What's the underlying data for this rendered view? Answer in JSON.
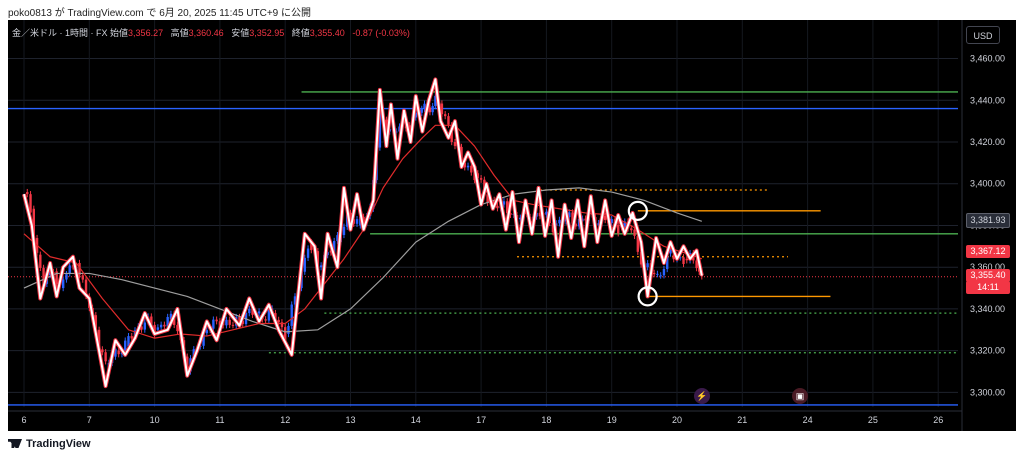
{
  "header": {
    "caption": "poko0813 が TradingView.com で 6月 20, 2025 11:45 UTC+9 に公開"
  },
  "legend": {
    "symbol": "金／米ドル · 1時間 · FX",
    "open_label": "始値",
    "open": "3,356.27",
    "high_label": "高値",
    "high": "3,360.46",
    "low_label": "安値",
    "low": "3,352.95",
    "close_label": "終値",
    "close": "3,355.40",
    "change": "-0.87 (-0.03%)"
  },
  "currency_button": "USD",
  "price_tags": {
    "ma_value": "3,381.93",
    "upper_red": "3,367.12",
    "last_price": "3,355.40",
    "countdown": "14:11"
  },
  "footer": {
    "logo_text": "TradingView"
  },
  "colors": {
    "background": "#000000",
    "up": "#2962ff",
    "down": "#f23645",
    "line_overlay": "#ffffff",
    "ma_fast": "#e02b2b",
    "ma_slow": "#9e9e9e",
    "blue_level": "#2962ff",
    "green_level": "#4caf50",
    "orange_level": "#ff9800"
  },
  "chart_data": {
    "type": "line",
    "instrument": "金／米ドル · 1時間 · FX",
    "x_ticks": [
      "6",
      "7",
      "10",
      "11",
      "12",
      "13",
      "14",
      "17",
      "18",
      "19",
      "20",
      "21",
      "24",
      "25",
      "26"
    ],
    "y_ticks": [
      "3,460.00",
      "3,440.00",
      "3,420.00",
      "3,400.00",
      "3,380.00",
      "3,360.00",
      "3,340.00",
      "3,320.00",
      "3,300.00"
    ],
    "ylim": [
      3293,
      3466
    ],
    "grid": true,
    "price_path_day_index": [
      [
        0.0,
        3395
      ],
      [
        0.12,
        3380
      ],
      [
        0.25,
        3345
      ],
      [
        0.4,
        3362
      ],
      [
        0.5,
        3346
      ],
      [
        0.6,
        3360
      ],
      [
        0.75,
        3365
      ],
      [
        0.85,
        3350
      ],
      [
        1.0,
        3345
      ],
      [
        1.15,
        3320
      ],
      [
        1.25,
        3303
      ],
      [
        1.4,
        3325
      ],
      [
        1.55,
        3318
      ],
      [
        1.7,
        3326
      ],
      [
        1.85,
        3338
      ],
      [
        2.0,
        3328
      ],
      [
        2.2,
        3330
      ],
      [
        2.35,
        3340
      ],
      [
        2.5,
        3308
      ],
      [
        2.65,
        3320
      ],
      [
        2.8,
        3334
      ],
      [
        2.95,
        3325
      ],
      [
        3.1,
        3340
      ],
      [
        3.3,
        3332
      ],
      [
        3.45,
        3345
      ],
      [
        3.6,
        3334
      ],
      [
        3.75,
        3342
      ],
      [
        3.9,
        3330
      ],
      [
        4.1,
        3318
      ],
      [
        4.3,
        3376
      ],
      [
        4.45,
        3370
      ],
      [
        4.55,
        3345
      ],
      [
        4.65,
        3376
      ],
      [
        4.8,
        3360
      ],
      [
        4.9,
        3398
      ],
      [
        5.0,
        3378
      ],
      [
        5.1,
        3395
      ],
      [
        5.2,
        3378
      ],
      [
        5.35,
        3392
      ],
      [
        5.45,
        3445
      ],
      [
        5.55,
        3418
      ],
      [
        5.62,
        3438
      ],
      [
        5.72,
        3412
      ],
      [
        5.82,
        3435
      ],
      [
        5.92,
        3420
      ],
      [
        6.0,
        3442
      ],
      [
        6.1,
        3425
      ],
      [
        6.2,
        3440
      ],
      [
        6.3,
        3450
      ],
      [
        6.38,
        3430
      ],
      [
        6.5,
        3422
      ],
      [
        6.6,
        3430
      ],
      [
        6.7,
        3408
      ],
      [
        6.8,
        3415
      ],
      [
        6.9,
        3408
      ],
      [
        7.0,
        3390
      ],
      [
        7.08,
        3400
      ],
      [
        7.18,
        3388
      ],
      [
        7.28,
        3395
      ],
      [
        7.38,
        3378
      ],
      [
        7.48,
        3396
      ],
      [
        7.58,
        3372
      ],
      [
        7.68,
        3392
      ],
      [
        7.78,
        3376
      ],
      [
        7.88,
        3398
      ],
      [
        7.98,
        3375
      ],
      [
        8.08,
        3392
      ],
      [
        8.18,
        3365
      ],
      [
        8.28,
        3390
      ],
      [
        8.38,
        3374
      ],
      [
        8.48,
        3392
      ],
      [
        8.58,
        3370
      ],
      [
        8.68,
        3394
      ],
      [
        8.78,
        3372
      ],
      [
        8.9,
        3392
      ],
      [
        9.0,
        3375
      ],
      [
        9.1,
        3385
      ],
      [
        9.2,
        3376
      ],
      [
        9.32,
        3386
      ],
      [
        9.45,
        3372
      ],
      [
        9.55,
        3346
      ],
      [
        9.68,
        3374
      ],
      [
        9.8,
        3362
      ],
      [
        9.9,
        3372
      ],
      [
        10.0,
        3364
      ],
      [
        10.1,
        3370
      ],
      [
        10.2,
        3364
      ],
      [
        10.3,
        3368
      ],
      [
        10.38,
        3356
      ]
    ],
    "candle_path_day_index": [
      [
        0.0,
        3396
      ],
      [
        0.1,
        3388
      ],
      [
        0.2,
        3366
      ],
      [
        0.3,
        3352
      ],
      [
        0.45,
        3358
      ],
      [
        0.55,
        3350
      ],
      [
        0.65,
        3357
      ],
      [
        0.8,
        3362
      ],
      [
        0.95,
        3346
      ],
      [
        1.1,
        3330
      ],
      [
        1.25,
        3312
      ],
      [
        1.4,
        3320
      ],
      [
        1.55,
        3322
      ],
      [
        1.7,
        3330
      ],
      [
        1.85,
        3334
      ],
      [
        2.0,
        3330
      ],
      [
        2.2,
        3335
      ],
      [
        2.35,
        3332
      ],
      [
        2.5,
        3310
      ],
      [
        2.65,
        3322
      ],
      [
        2.8,
        3330
      ],
      [
        3.0,
        3334
      ],
      [
        3.2,
        3332
      ],
      [
        3.4,
        3338
      ],
      [
        3.6,
        3337
      ],
      [
        3.8,
        3338
      ],
      [
        4.0,
        3328
      ],
      [
        4.2,
        3350
      ],
      [
        4.35,
        3372
      ],
      [
        4.5,
        3360
      ],
      [
        4.65,
        3368
      ],
      [
        4.8,
        3372
      ],
      [
        4.95,
        3386
      ],
      [
        5.1,
        3380
      ],
      [
        5.3,
        3388
      ],
      [
        5.45,
        3432
      ],
      [
        5.65,
        3425
      ],
      [
        5.85,
        3428
      ],
      [
        6.05,
        3434
      ],
      [
        6.3,
        3440
      ],
      [
        6.5,
        3428
      ],
      [
        6.7,
        3410
      ],
      [
        6.9,
        3405
      ],
      [
        7.1,
        3392
      ],
      [
        7.3,
        3390
      ],
      [
        7.5,
        3385
      ],
      [
        7.7,
        3384
      ],
      [
        7.9,
        3386
      ],
      [
        8.1,
        3380
      ],
      [
        8.3,
        3384
      ],
      [
        8.5,
        3382
      ],
      [
        8.7,
        3384
      ],
      [
        8.9,
        3382
      ],
      [
        9.1,
        3380
      ],
      [
        9.3,
        3378
      ],
      [
        9.5,
        3360
      ],
      [
        9.7,
        3356
      ],
      [
        9.9,
        3366
      ],
      [
        10.1,
        3364
      ],
      [
        10.3,
        3362
      ],
      [
        10.38,
        3355
      ]
    ],
    "ma_fast_day_index": [
      [
        0.0,
        3376
      ],
      [
        0.4,
        3365
      ],
      [
        0.8,
        3362
      ],
      [
        1.2,
        3345
      ],
      [
        1.6,
        3330
      ],
      [
        2.0,
        3326
      ],
      [
        2.4,
        3328
      ],
      [
        2.8,
        3327
      ],
      [
        3.2,
        3330
      ],
      [
        3.6,
        3333
      ],
      [
        4.0,
        3333
      ],
      [
        4.3,
        3340
      ],
      [
        4.6,
        3352
      ],
      [
        4.9,
        3364
      ],
      [
        5.2,
        3378
      ],
      [
        5.5,
        3398
      ],
      [
        5.8,
        3412
      ],
      [
        6.1,
        3422
      ],
      [
        6.3,
        3428
      ],
      [
        6.6,
        3428
      ],
      [
        6.9,
        3418
      ],
      [
        7.2,
        3404
      ],
      [
        7.5,
        3392
      ],
      [
        7.8,
        3390
      ],
      [
        8.2,
        3388
      ],
      [
        8.6,
        3386
      ],
      [
        9.0,
        3385
      ],
      [
        9.4,
        3378
      ],
      [
        9.8,
        3370
      ],
      [
        10.2,
        3366
      ],
      [
        10.38,
        3364
      ]
    ],
    "ma_slow_day_index": [
      [
        0.0,
        3350
      ],
      [
        0.5,
        3357
      ],
      [
        1.0,
        3357
      ],
      [
        1.5,
        3354
      ],
      [
        2.0,
        3350
      ],
      [
        2.5,
        3346
      ],
      [
        3.0,
        3340
      ],
      [
        3.5,
        3334
      ],
      [
        4.0,
        3329
      ],
      [
        4.5,
        3330
      ],
      [
        5.0,
        3340
      ],
      [
        5.5,
        3355
      ],
      [
        6.0,
        3372
      ],
      [
        6.5,
        3382
      ],
      [
        7.0,
        3390
      ],
      [
        7.5,
        3395
      ],
      [
        8.0,
        3397
      ],
      [
        8.5,
        3398
      ],
      [
        9.0,
        3396
      ],
      [
        9.5,
        3392
      ],
      [
        10.0,
        3386
      ],
      [
        10.38,
        3382
      ]
    ],
    "levels": [
      {
        "color": "blue_level",
        "style": "solid",
        "price": 3436,
        "from": -0.5,
        "to": 14.5
      },
      {
        "color": "blue_level",
        "style": "solid",
        "price": 3294,
        "from": -0.5,
        "to": 14.5
      },
      {
        "color": "green_level",
        "style": "solid",
        "price": 3444,
        "from": 4.25,
        "to": 14.5
      },
      {
        "color": "green_level",
        "style": "solid",
        "price": 3376,
        "from": 5.3,
        "to": 14.5
      },
      {
        "color": "green_level",
        "style": "dotted",
        "price": 3338,
        "from": 4.6,
        "to": 14.5
      },
      {
        "color": "green_level",
        "style": "dotted",
        "price": 3319,
        "from": 3.75,
        "to": 14.5
      },
      {
        "color": "orange_level",
        "style": "dotted",
        "price": 3397,
        "from": 7.9,
        "to": 11.4
      },
      {
        "color": "orange_level",
        "style": "solid",
        "price": 3387,
        "from": 9.4,
        "to": 12.2
      },
      {
        "color": "orange_level",
        "style": "dotted",
        "price": 3365,
        "from": 7.55,
        "to": 11.7
      },
      {
        "color": "orange_level",
        "style": "solid",
        "price": 3346,
        "from": 9.55,
        "to": 12.35
      }
    ],
    "circles": [
      [
        9.4,
        3387
      ],
      [
        9.55,
        3346
      ]
    ],
    "current_price": 3355.4
  }
}
